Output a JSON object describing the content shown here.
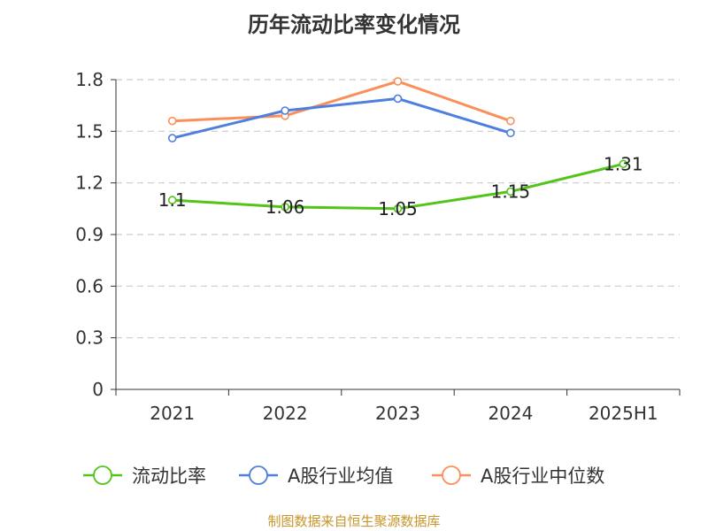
{
  "chart_data": {
    "type": "line",
    "title": "历年流动比率变化情况",
    "categories": [
      "2021",
      "2022",
      "2023",
      "2024",
      "2025H1"
    ],
    "ylim": [
      0,
      1.8
    ],
    "yticks": [
      "0",
      "0.3",
      "0.6",
      "0.9",
      "1.2",
      "1.5",
      "1.8"
    ],
    "grid": true,
    "legend_position": "bottom",
    "series": [
      {
        "name": "流动比率",
        "color": "#52c41a",
        "values": [
          1.1,
          1.06,
          1.05,
          1.15,
          1.31
        ],
        "labels": [
          "1.1",
          "1.06",
          "1.05",
          "1.15",
          "1.31"
        ]
      },
      {
        "name": "A股行业均值",
        "color": "#4e7fde",
        "values": [
          1.46,
          1.62,
          1.69,
          1.49,
          null
        ]
      },
      {
        "name": "A股行业中位数",
        "color": "#fa8f5a",
        "values": [
          1.56,
          1.59,
          1.79,
          1.56,
          null
        ]
      }
    ]
  },
  "source": "制图数据来自恒生聚源数据库"
}
